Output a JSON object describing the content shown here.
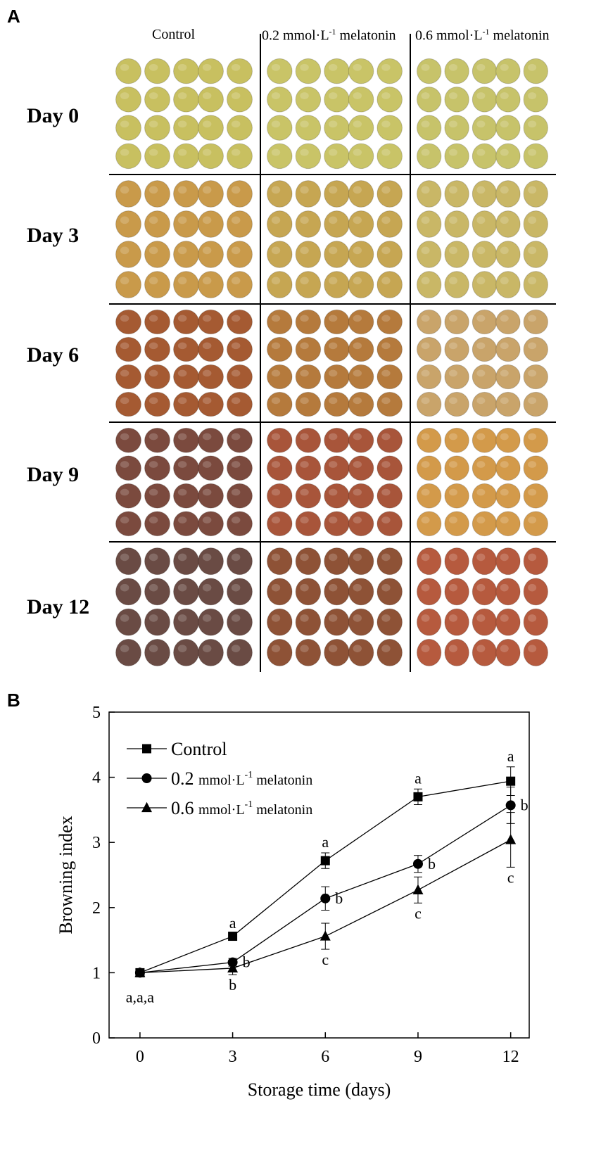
{
  "panel_a": {
    "letter": "A",
    "columns": [
      {
        "label": "Control"
      },
      {
        "label": "0.2 mmol·L",
        "sup": "-1",
        "suffix": " melatonin"
      },
      {
        "label": "0.6 mmol·L",
        "sup": "-1",
        "suffix": " melatonin"
      }
    ],
    "rows": [
      "Day 0",
      "Day 3",
      "Day 6",
      "Day 9",
      "Day 12"
    ],
    "fruit_colors": {
      "Day 0": [
        "#c8c060",
        "#c9c467",
        "#c7c36a"
      ],
      "Day 3": [
        "#c99a4a",
        "#c6a652",
        "#c9b766"
      ],
      "Day 6": [
        "#a55a32",
        "#b57a3c",
        "#c9a46a"
      ],
      "Day 9": [
        "#7b4a3e",
        "#a8553a",
        "#d39a4a"
      ],
      "Day 12": [
        "#6a4b44",
        "#8e5236",
        "#b65a3e"
      ]
    }
  },
  "panel_b": {
    "letter": "B"
  },
  "chart_data": {
    "type": "line",
    "title": "",
    "xlabel": "Storage time  (days)",
    "ylabel": "Browning index",
    "x": [
      0,
      3,
      6,
      9,
      12
    ],
    "xlim": [
      -1,
      12.6
    ],
    "ylim": [
      0,
      5
    ],
    "xticks": [
      "0",
      "3",
      "6",
      "9",
      "12"
    ],
    "yticks": [
      "0",
      "1",
      "2",
      "3",
      "4",
      "5"
    ],
    "legend_position": "top-left",
    "series": [
      {
        "name": "Control",
        "marker": "square",
        "values": [
          1.0,
          1.56,
          2.72,
          3.7,
          3.94
        ],
        "errors": [
          0.04,
          0.04,
          0.12,
          0.12,
          0.22
        ],
        "letters": [
          "",
          "a",
          "a",
          "a",
          "a"
        ]
      },
      {
        "name": "0.2 mmol·L⁻¹ melatonin",
        "legend_main": "0.2",
        "legend_unit": "mmol·L",
        "legend_sup": "-1",
        "legend_suffix": "melatonin",
        "marker": "circle",
        "values": [
          1.0,
          1.16,
          2.14,
          2.67,
          3.57
        ],
        "errors": [
          0.04,
          0.06,
          0.18,
          0.13,
          0.28
        ],
        "letters": [
          "",
          "b",
          "b",
          "b",
          "b"
        ]
      },
      {
        "name": "0.6 mmol·L⁻¹ melatonin",
        "legend_main": "0.6",
        "legend_unit": "mmol·L",
        "legend_sup": "-1",
        "legend_suffix": "melatonin",
        "marker": "triangle",
        "values": [
          1.0,
          1.07,
          1.56,
          2.27,
          3.04
        ],
        "errors": [
          0.04,
          0.1,
          0.2,
          0.2,
          0.42
        ],
        "letters": [
          "",
          "b",
          "c",
          "c",
          "c"
        ]
      }
    ],
    "annotations": [
      {
        "x": 0,
        "text": "a,a,a"
      }
    ]
  }
}
